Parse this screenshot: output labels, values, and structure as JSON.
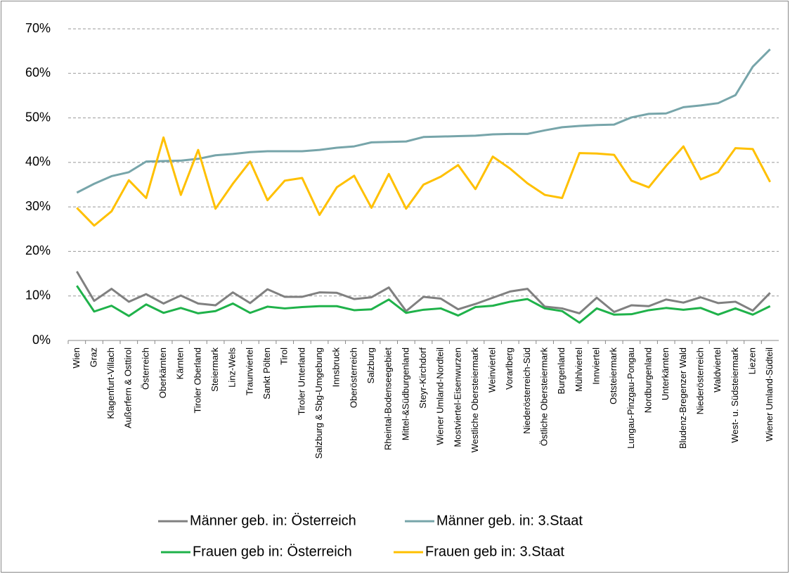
{
  "chart_data": {
    "type": "line",
    "categories": [
      "Wien",
      "Graz",
      "Klagenfurt-Villach",
      "Außerfern & Osttirol",
      "Österreich",
      "Oberkärnten",
      "Kärnten",
      "Tiroler Oberland",
      "Steiermark",
      "Linz-Wels",
      "Traunviertel",
      "Sankt Pölten",
      "Tirol",
      "Tiroler Unterland",
      "Salzburg & Sbg-Umgebung",
      "Innsbruck",
      "Oberösterreich",
      "Salzburg",
      "Rheintal-Bodenseegebiet",
      "Mittel-&Südburgenland",
      "Steyr-Kirchdorf",
      "Wiener Umland-Nordteil",
      "Mostviertel-Eisenwurzen",
      "Westliche Obersteiermark",
      "Weinviertel",
      "Vorarlberg",
      "Niederösterreich-Süd",
      "Östliche Obersteiermark",
      "Burgenland",
      "Mühlviertel",
      "Innviertel",
      "Oststeiermark",
      "Lungau-Pinzgau-Pongau",
      "Nordburgenland",
      "Unterkärnten",
      "Bludenz-Bregenzer Wald",
      "Niederösterreich",
      "Waldviertel",
      "West- u. Südsteiermark",
      "Liezen",
      "Wiener Umland-Südteil"
    ],
    "series": [
      {
        "name": "Männer geb. in: Österreich",
        "color": "#808080",
        "values": [
          15.5,
          8.9,
          11.6,
          8.7,
          10.4,
          8.3,
          10.1,
          8.3,
          7.9,
          10.8,
          8.4,
          11.5,
          9.8,
          9.8,
          10.8,
          10.7,
          9.3,
          9.7,
          11.9,
          6.6,
          9.8,
          9.4,
          7.0,
          8.2,
          9.6,
          11.0,
          11.6,
          7.6,
          7.2,
          6.1,
          9.6,
          6.4,
          7.9,
          7.7,
          9.2,
          8.5,
          9.7,
          8.4,
          8.7,
          6.7,
          10.7
        ]
      },
      {
        "name": "Männer geb. in: 3.Staat",
        "color": "#77a5aa",
        "values": [
          33.2,
          35.2,
          36.9,
          37.8,
          40.2,
          40.3,
          40.4,
          40.8,
          41.6,
          41.9,
          42.3,
          42.5,
          42.5,
          42.5,
          42.8,
          43.3,
          43.6,
          44.5,
          44.6,
          44.7,
          45.7,
          45.8,
          45.9,
          46.0,
          46.3,
          46.4,
          46.4,
          47.2,
          47.9,
          48.2,
          48.4,
          48.5,
          50.1,
          50.9,
          51.0,
          52.4,
          52.8,
          53.3,
          55.1,
          61.5,
          65.4
        ]
      },
      {
        "name": "Frauen geb in: Österreich",
        "color": "#1fb24a",
        "values": [
          12.3,
          6.5,
          7.8,
          5.5,
          8.1,
          6.2,
          7.3,
          6.1,
          6.6,
          8.3,
          6.2,
          7.6,
          7.2,
          7.5,
          7.7,
          7.7,
          6.8,
          7.0,
          9.2,
          6.2,
          6.9,
          7.2,
          5.6,
          7.5,
          7.8,
          8.7,
          9.3,
          7.2,
          6.6,
          4.0,
          7.2,
          5.8,
          5.9,
          6.8,
          7.3,
          6.9,
          7.3,
          5.8,
          7.2,
          5.8,
          7.7
        ]
      },
      {
        "name": "Frauen geb in: 3.Staat",
        "color": "#ffc000",
        "values": [
          29.8,
          25.8,
          29.0,
          36.0,
          32.0,
          45.6,
          32.7,
          42.8,
          29.6,
          35.2,
          40.2,
          31.5,
          35.9,
          36.5,
          28.2,
          34.4,
          37.0,
          29.8,
          37.4,
          29.6,
          35.0,
          36.8,
          39.4,
          34.0,
          41.3,
          38.6,
          35.3,
          32.7,
          32.0,
          42.1,
          42.0,
          41.7,
          35.9,
          34.4,
          39.2,
          43.6,
          36.2,
          37.8,
          43.2,
          43.0,
          35.6
        ]
      }
    ],
    "ylim": [
      0,
      70
    ],
    "yticks": [
      {
        "value": 0,
        "label": "0%"
      },
      {
        "value": 10,
        "label": "10%"
      },
      {
        "value": 20,
        "label": "20%"
      },
      {
        "value": 30,
        "label": "30%"
      },
      {
        "value": 40,
        "label": "40%"
      },
      {
        "value": 50,
        "label": "50%"
      },
      {
        "value": 60,
        "label": "60%"
      },
      {
        "value": 70,
        "label": "70%"
      }
    ],
    "grid": true,
    "legend": "bottom"
  }
}
